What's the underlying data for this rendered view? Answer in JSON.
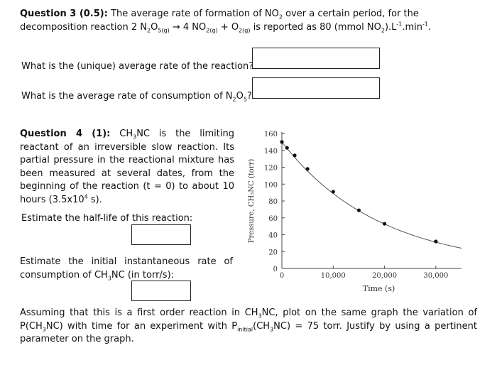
{
  "question3": {
    "heading": "Question 3 (0.5):",
    "text_a": " The average rate of formation of NO",
    "sub_2a": "2",
    "text_b": " over a certain period, for the decomposition reaction 2 N",
    "sub_2b": "2",
    "text_c": "O",
    "sub_5g": "5(g)",
    "text_d": " → 4 NO",
    "sub_2g": "2(g)",
    "text_e": " + O",
    "sub_2g_b": "2(g)",
    "text_f": " is reported as 80 (mmol NO",
    "sub_2c": "2",
    "text_g": ").L",
    "sup_m1a": "-1",
    "text_h": ".min",
    "sup_m1b": "-1",
    "text_i": ".",
    "prompt1": "What is the (unique) average rate of the reaction?",
    "prompt2_a": "What is the average rate of consumption of N",
    "prompt2_sub2": "2",
    "prompt2_b": "O",
    "prompt2_sub5": "5",
    "prompt2_c": "?"
  },
  "question4": {
    "heading": "Question 4 (1):",
    "p1_a": " CH",
    "p1_sub3": "3",
    "p1_b": "NC is the limiting reactant of an irreversible slow reaction. Its partial pressure in the reactional mixture has been measured at several dates, from the beginning of the reaction (t = 0) to about 10 hours (3.5x10",
    "p1_sup4": "4",
    "p1_c": " s).",
    "prompt_half_life": "Estimate the half-life of this reaction:",
    "prompt_rate_a": "Estimate the initial instantaneous rate of consumption of CH",
    "prompt_rate_sub3": "3",
    "prompt_rate_b": "NC (in torr/s):"
  },
  "bottom": {
    "text_a": "Assuming that this is a first order reaction in CH",
    "sub3a": "3",
    "text_b": "NC, plot on the same graph the variation of P(CH",
    "sub3b": "3",
    "text_c": "NC) with time for an experiment with P",
    "sub_initial": "initial",
    "text_d": "(CH",
    "sub3c": "3",
    "text_e": "NC)  = 75 torr. Justify by using a pertinent parameter on the graph."
  },
  "chart_data": {
    "type": "line",
    "xlabel": "Time (s)",
    "ylabel": "Pressure, CH₃NC (torr)",
    "xlim": [
      0,
      35000
    ],
    "ylim": [
      0,
      160
    ],
    "xticks": [
      0,
      10000,
      20000,
      30000
    ],
    "xtick_labels": [
      "0",
      "10,000",
      "20,000",
      "30,000"
    ],
    "yticks": [
      0,
      20,
      40,
      60,
      80,
      100,
      120,
      140,
      160
    ],
    "ytick_labels": [
      "0",
      "20",
      "40",
      "60",
      "80",
      "100",
      "120",
      "140",
      "160"
    ],
    "series": [
      {
        "x": [
          0,
          1000,
          2500,
          5000,
          10000,
          15000,
          20000,
          30000
        ],
        "y": [
          150,
          143,
          134,
          118,
          91,
          69,
          53,
          32
        ]
      }
    ],
    "curve_x_end": 35000,
    "curve_y_end": 24,
    "grid": false,
    "colors": {
      "line": "#555555",
      "marker": "#111111"
    }
  }
}
